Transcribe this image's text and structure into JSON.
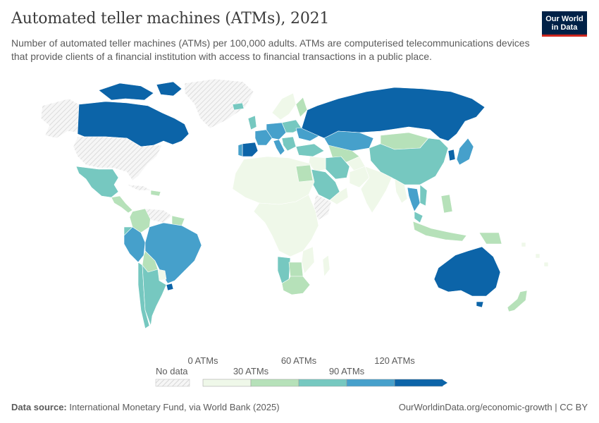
{
  "header": {
    "title": "Automated teller machines (ATMs), 2021",
    "subtitle": "Number of automated teller machines (ATMs) per 100,000 adults. ATMs are computerised telecommunications devices that provide clients of a financial institution with access to financial transactions in a public place."
  },
  "logo": {
    "line1": "Our World",
    "line2": "in Data",
    "bg": "#002147",
    "accent": "#ce261e"
  },
  "legend": {
    "no_data_label": "No data",
    "bins": [
      {
        "label": "0 ATMs",
        "color": "#eff8e9"
      },
      {
        "label": "30 ATMs",
        "color": "#b6e1b9"
      },
      {
        "label": "60 ATMs",
        "color": "#76c8c0"
      },
      {
        "label": "90 ATMs",
        "color": "#46a0cb"
      },
      {
        "label": "120 ATMs",
        "color": "#0c64a8"
      }
    ],
    "colors": [
      "#eff8e9",
      "#b6e1b9",
      "#76c8c0",
      "#46a0cb",
      "#0c64a8"
    ]
  },
  "footer": {
    "source_label": "Data source:",
    "source_text": "International Monetary Fund, via World Bank (2025)",
    "right_text": "OurWorldinData.org/economic-growth | CC BY"
  },
  "colors": {
    "border": "#ffffff",
    "nodata_stripe": "#d6d6d6",
    "nodata_bg": "#f6f6f6"
  }
}
